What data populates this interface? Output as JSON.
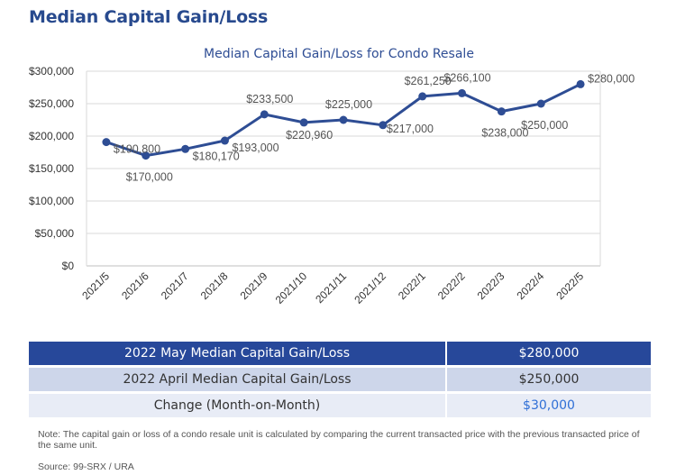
{
  "heading": "Median Capital Gain/Loss",
  "chart_data": {
    "type": "line",
    "title": "Median Capital Gain/Loss for Condo Resale",
    "xlabel": "",
    "ylabel": "",
    "categories": [
      "2021/5",
      "2021/6",
      "2021/7",
      "2021/8",
      "2021/9",
      "2021/10",
      "2021/11",
      "2021/12",
      "2022/1",
      "2022/2",
      "2022/3",
      "2022/4",
      "2022/5"
    ],
    "series": [
      {
        "values": [
          190800,
          170000,
          180170,
          193000,
          233500,
          220960,
          225000,
          217000,
          261250,
          266100,
          238000,
          250000,
          280000
        ]
      }
    ],
    "data_labels": [
      "$190,800",
      "$170,000",
      "$180,170",
      "$193,000",
      "$233,500",
      "$220,960",
      "$225,000",
      "$217,000",
      "$261,250",
      "$266,100",
      "$238,000",
      "$250,000",
      "$280,000"
    ],
    "ylim": [
      0,
      300000
    ],
    "yticks": [
      0,
      50000,
      100000,
      150000,
      200000,
      250000,
      300000
    ],
    "ytick_labels": [
      "$0",
      "$50,000",
      "$100,000",
      "$150,000",
      "$200,000",
      "$250,000",
      "$300,000"
    ],
    "grid": true,
    "line_color": "#2e4d94"
  },
  "table": {
    "rows": [
      {
        "label": "2022 May Median Capital Gain/Loss",
        "value": "$280,000"
      },
      {
        "label": "2022 April Median Capital Gain/Loss",
        "value": "$250,000"
      },
      {
        "label": "Change (Month-on-Month)",
        "value": "$30,000"
      }
    ]
  },
  "note": "Note: The capital gain or loss of a condo resale unit is calculated by comparing the current transacted price with the previous transacted price of the same unit.",
  "source": "Source: 99-SRX / URA"
}
